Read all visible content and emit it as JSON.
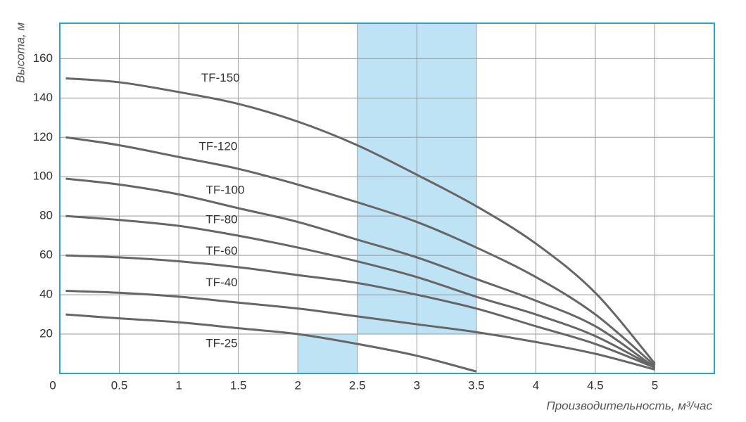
{
  "chart_data": {
    "type": "line",
    "y_label": "Высота, м",
    "x_label": "Производительность, м³/час",
    "x": [
      0.05,
      0.5,
      1,
      1.5,
      2,
      2.5,
      3,
      3.5,
      4,
      4.5,
      5
    ],
    "xlim": [
      0,
      5.5
    ],
    "ylim": [
      0,
      178
    ],
    "xticks": [
      0,
      0.5,
      1,
      1.5,
      2,
      2.5,
      3,
      3.5,
      4,
      4.5,
      5
    ],
    "yticks": [
      20,
      40,
      60,
      80,
      100,
      120,
      140,
      160
    ],
    "grid": true,
    "frame_color": "#29a3d6",
    "highlight_color": "#bde3f5",
    "highlights": [
      {
        "x": [
          2.5,
          3.5
        ],
        "y": [
          20,
          178
        ]
      },
      {
        "x": [
          2,
          2.5
        ],
        "y": [
          0,
          20
        ]
      }
    ],
    "series": [
      {
        "name": "TF-150",
        "color": "#666666",
        "values": [
          150,
          148,
          143,
          137,
          128,
          116,
          101,
          85,
          66,
          41,
          5
        ]
      },
      {
        "name": "TF-120",
        "color": "#666666",
        "values": [
          120,
          116,
          110,
          104,
          96,
          87,
          77,
          64,
          49,
          30,
          4
        ]
      },
      {
        "name": "TF-100",
        "color": "#666666",
        "values": [
          99,
          96,
          91,
          84,
          77,
          68,
          59,
          48,
          37,
          24,
          3
        ]
      },
      {
        "name": "TF-80",
        "color": "#666666",
        "values": [
          80,
          78,
          75,
          70,
          64,
          57,
          49,
          39,
          30,
          19,
          3
        ]
      },
      {
        "name": "TF-60",
        "color": "#666666",
        "values": [
          60,
          59,
          57,
          54,
          50,
          46,
          40,
          33,
          24,
          15,
          3
        ]
      },
      {
        "name": "TF-40",
        "color": "#666666",
        "values": [
          42,
          41,
          39,
          36,
          33,
          29,
          25,
          21,
          16,
          10,
          2
        ]
      },
      {
        "name": "TF-25",
        "color": "#666666",
        "values": [
          30,
          28,
          26,
          23,
          20,
          15,
          9,
          1,
          null,
          null,
          null
        ]
      }
    ]
  }
}
